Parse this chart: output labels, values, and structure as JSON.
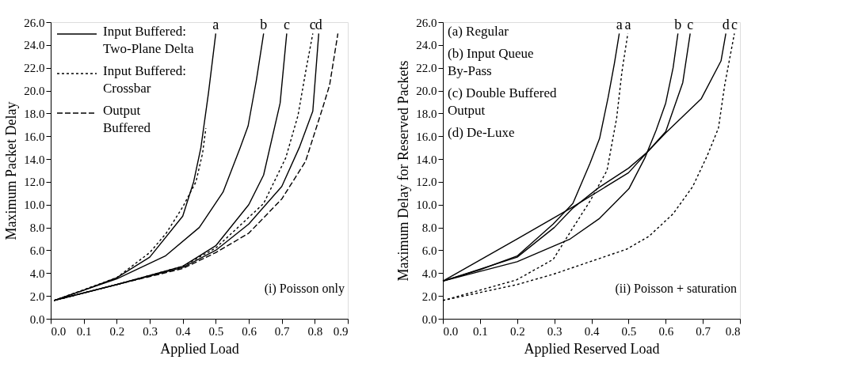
{
  "chart_data": [
    {
      "type": "line",
      "xlabel": "Applied Load",
      "ylabel": "Maximum Packet Delay",
      "legend": "top left",
      "xlim": [
        0,
        0.9
      ],
      "ylim": [
        0,
        26
      ],
      "xticks": [
        {
          "value": 0,
          "label": "0.0"
        },
        0.1,
        0.2,
        0.3,
        0.4,
        0.5,
        0.6,
        0.7,
        0.8,
        0.9
      ],
      "yticks": [
        {
          "value": 0,
          "label": "0.0"
        },
        {
          "value": 2,
          "label": "2.0"
        },
        {
          "value": 4,
          "label": "4.0"
        },
        {
          "value": 6,
          "label": "6.0"
        },
        {
          "value": 8,
          "label": "8.0"
        },
        {
          "value": 10,
          "label": "10.0"
        },
        {
          "value": 12,
          "label": "12.0"
        },
        {
          "value": 14,
          "label": "14.0"
        },
        {
          "value": 16,
          "label": "16.0"
        },
        {
          "value": 18,
          "label": "18.0"
        },
        {
          "value": 20,
          "label": "20.0"
        },
        {
          "value": 22,
          "label": "22.0"
        },
        {
          "value": 24,
          "label": "24.0"
        },
        {
          "value": 26,
          "label": "26.0"
        }
      ],
      "series": [
        {
          "name": "Input Buffered:\nTwo-Plane Delta",
          "color": "#000000",
          "line_style": "solid",
          "x": [
            0.01,
            0.1,
            0.2,
            0.3,
            0.4,
            0.433,
            0.455,
            0.478,
            0.5
          ],
          "values": [
            1.6,
            2.5,
            3.6,
            5.4,
            9.0,
            12.0,
            15.0,
            19.8,
            25.0
          ]
        },
        {
          "color": "#000000",
          "line_style": "solid",
          "x": [
            0.01,
            0.1,
            0.2,
            0.347,
            0.45,
            0.522,
            0.574,
            0.598,
            0.623,
            0.645
          ],
          "values": [
            1.6,
            2.5,
            3.5,
            5.5,
            8.0,
            11.1,
            15.0,
            16.9,
            20.9,
            25.0
          ]
        },
        {
          "color": "#000000",
          "line_style": "solid",
          "x": [
            0.01,
            0.2,
            0.4,
            0.5,
            0.6,
            0.645,
            0.695,
            0.715
          ],
          "values": [
            1.6,
            3.0,
            4.6,
            6.4,
            10.0,
            12.6,
            18.9,
            25.0
          ]
        },
        {
          "color": "#000000",
          "line_style": "solid",
          "x": [
            0.01,
            0.2,
            0.4,
            0.5,
            0.6,
            0.7,
            0.753,
            0.794,
            0.812
          ],
          "values": [
            1.6,
            3.0,
            4.5,
            6.0,
            8.3,
            11.6,
            15.0,
            18.2,
            25.0
          ]
        },
        {
          "name": "Input Buffered:\nCrossbar",
          "color": "#000000",
          "line_style": "dotted",
          "x": [
            0.01,
            0.2,
            0.3,
            0.35,
            0.4,
            0.44,
            0.46,
            0.47
          ],
          "values": [
            1.6,
            3.6,
            5.8,
            7.5,
            9.8,
            12.0,
            14.5,
            16.7
          ]
        },
        {
          "color": "#000000",
          "line_style": "dotted",
          "x": [
            0.01,
            0.2,
            0.4,
            0.5,
            0.645,
            0.712,
            0.749,
            0.772,
            0.794
          ],
          "values": [
            1.6,
            3.0,
            4.6,
            6.2,
            10.1,
            14.1,
            17.8,
            21.6,
            25.0
          ]
        },
        {
          "name": "Output\nBuffered",
          "color": "#000000",
          "line_style": "dashed",
          "x": [
            0.01,
            0.2,
            0.4,
            0.5,
            0.6,
            0.7,
            0.772,
            0.824,
            0.845,
            0.87
          ],
          "values": [
            1.6,
            3.0,
            4.4,
            5.8,
            7.5,
            10.5,
            13.8,
            18.5,
            20.5,
            25.0
          ]
        }
      ],
      "annotations": [
        {
          "text": "a",
          "x": 0.5,
          "y": 25.0
        },
        {
          "text": "b",
          "x": 0.645,
          "y": 25.0
        },
        {
          "text": "c",
          "x": 0.715,
          "y": 25.0
        },
        {
          "text": "c",
          "x": 0.794,
          "y": 25.0
        },
        {
          "text": "d",
          "x": 0.812,
          "y": 25.0
        },
        "(i) Poisson only"
      ]
    },
    {
      "type": "line",
      "xlabel": "Applied Reserved Load",
      "ylabel": "Maximum Delay for Reserved Packets",
      "xlim": [
        0,
        0.8
      ],
      "ylim": [
        0,
        26
      ],
      "xticks": [
        {
          "value": 0,
          "label": "0.0"
        },
        0.1,
        0.2,
        0.3,
        0.4,
        0.5,
        0.6,
        0.7,
        0.8
      ],
      "yticks": [
        {
          "value": 0,
          "label": "0.0"
        },
        {
          "value": 2,
          "label": "2.0"
        },
        {
          "value": 4,
          "label": "4.0"
        },
        {
          "value": 6,
          "label": "6.0"
        },
        {
          "value": 8,
          "label": "8.0"
        },
        {
          "value": 10,
          "label": "10.0"
        },
        {
          "value": 12,
          "label": "12.0"
        },
        {
          "value": 14,
          "label": "14.0"
        },
        {
          "value": 16,
          "label": "16.0"
        },
        {
          "value": 18,
          "label": "18.0"
        },
        {
          "value": 20,
          "label": "20.0"
        },
        {
          "value": 22,
          "label": "22.0"
        },
        {
          "value": 24,
          "label": "24.0"
        },
        {
          "value": 26,
          "label": "26.0"
        }
      ],
      "series": [
        {
          "color": "#000000",
          "line_style": "solid",
          "x": [
            0,
            0.1,
            0.2,
            0.297,
            0.35,
            0.396,
            0.422,
            0.445,
            0.462,
            0.475
          ],
          "values": [
            3.3,
            4.3,
            5.5,
            8.3,
            10.1,
            13.6,
            15.8,
            19.4,
            22.4,
            25.0
          ]
        },
        {
          "color": "#000000",
          "line_style": "solid",
          "x": [
            0,
            0.2,
            0.343,
            0.422,
            0.501,
            0.544,
            0.574,
            0.6,
            0.62,
            0.633
          ],
          "values": [
            3.3,
            5.0,
            7.0,
            8.8,
            11.4,
            14.1,
            16.5,
            18.9,
            22.0,
            25.0
          ]
        },
        {
          "color": "#000000",
          "line_style": "solid",
          "x": [
            0,
            0.2,
            0.3,
            0.35,
            0.42,
            0.5,
            0.55,
            0.6,
            0.646,
            0.666
          ],
          "values": [
            3.3,
            5.4,
            8.0,
            9.7,
            11.5,
            13.2,
            14.6,
            16.4,
            20.7,
            25.0
          ]
        },
        {
          "color": "#000000",
          "line_style": "solid",
          "x": [
            0,
            0.2,
            0.35,
            0.5,
            0.55,
            0.6,
            0.696,
            0.749,
            0.762
          ],
          "values": [
            3.3,
            7.0,
            9.8,
            12.8,
            14.6,
            16.3,
            19.3,
            22.6,
            25.0
          ]
        },
        {
          "color": "#000000",
          "line_style": "dotted",
          "x": [
            0,
            0.198,
            0.297,
            0.343,
            0.396,
            0.442,
            0.468,
            0.482,
            0.498
          ],
          "values": [
            1.6,
            3.4,
            5.2,
            7.6,
            10.3,
            13.0,
            17.6,
            21.6,
            25.0
          ]
        },
        {
          "color": "#000000",
          "line_style": "dotted",
          "x": [
            0,
            0.2,
            0.297,
            0.396,
            0.495,
            0.554,
            0.62,
            0.673,
            0.712,
            0.742,
            0.759,
            0.785
          ],
          "values": [
            1.6,
            3.0,
            3.9,
            5.0,
            6.1,
            7.2,
            9.2,
            11.6,
            14.3,
            16.7,
            20.5,
            25.0
          ]
        }
      ],
      "annotations": [
        {
          "text": "a",
          "x": 0.475,
          "y": 25.0
        },
        {
          "text": "a",
          "x": 0.498,
          "y": 25.0
        },
        {
          "text": "b",
          "x": 0.633,
          "y": 25.0
        },
        {
          "text": "c",
          "x": 0.666,
          "y": 25.0
        },
        {
          "text": "d",
          "x": 0.762,
          "y": 25.0
        },
        {
          "text": "c",
          "x": 0.785,
          "y": 25.0
        },
        "(a) Regular",
        "(b) Input Queue\n      By-Pass",
        "(c) Double Buffered\n      Output",
        "(d) De-Luxe",
        "(ii) Poisson + saturation"
      ]
    }
  ]
}
